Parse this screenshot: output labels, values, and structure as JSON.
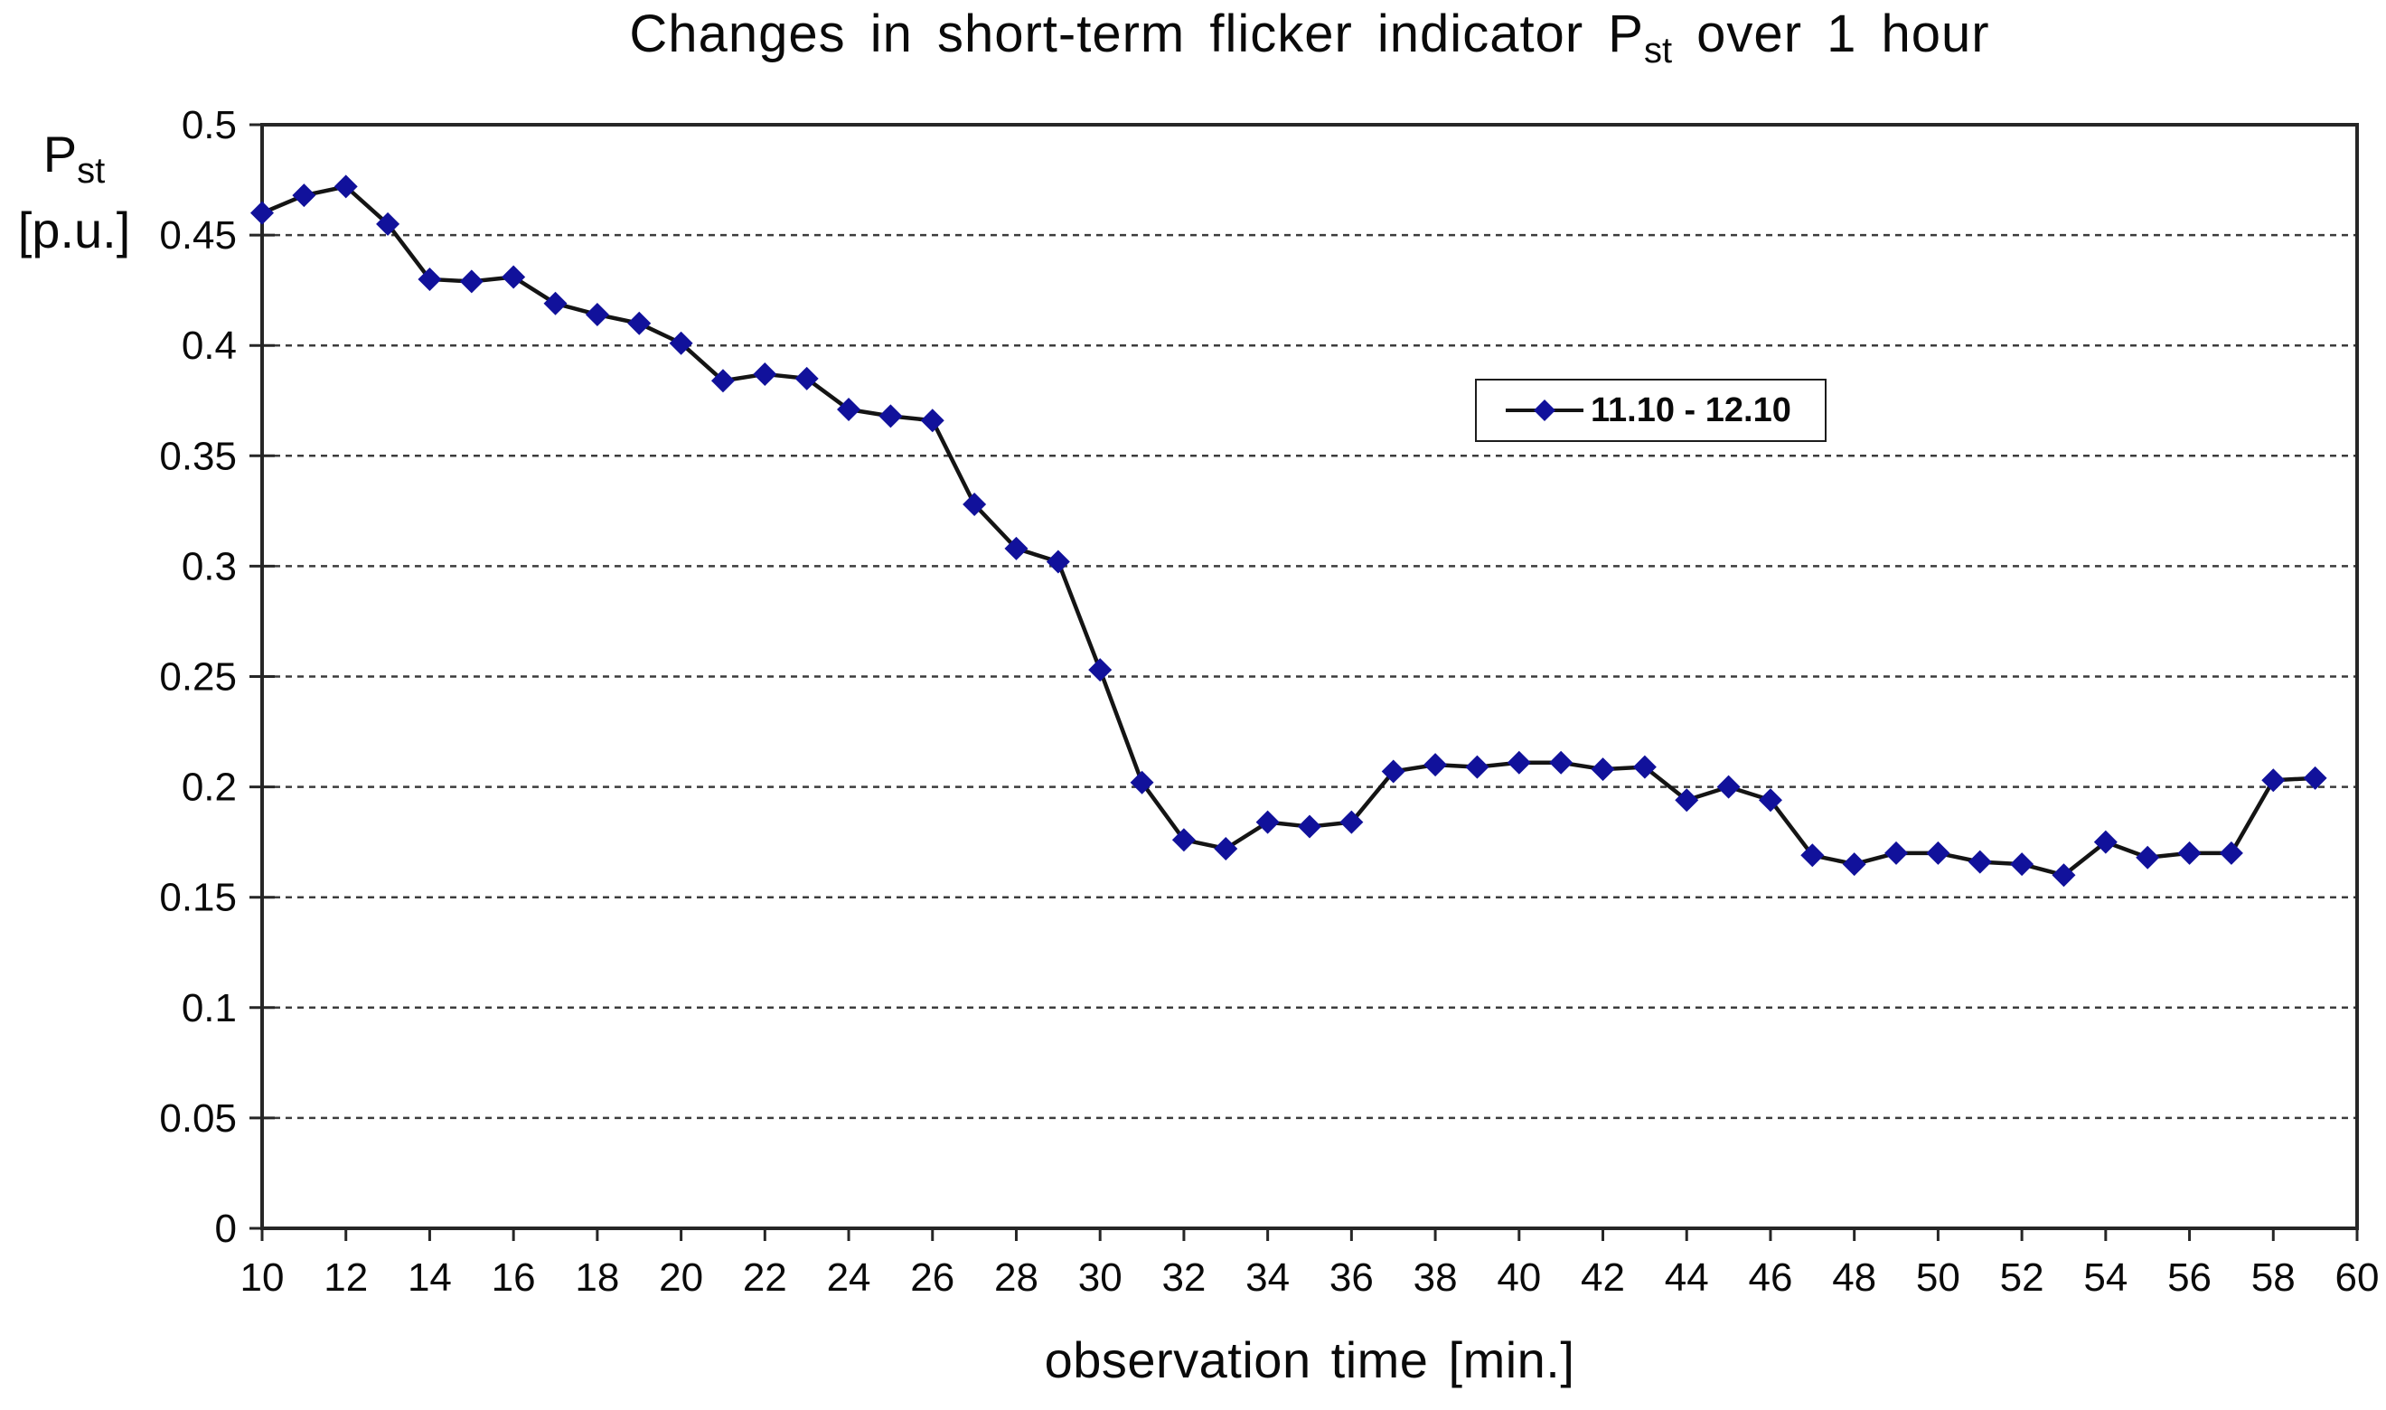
{
  "chart_data": {
    "type": "line",
    "title": {
      "prefix": "Changes in short-term flicker indicator P",
      "subscript": "st",
      "suffix": " over 1 hour"
    },
    "x_axis": {
      "label": "observation time [min.]",
      "min": 10,
      "max": 60,
      "tick_values": [
        10,
        12,
        14,
        16,
        18,
        20,
        22,
        24,
        26,
        28,
        30,
        32,
        34,
        36,
        38,
        40,
        42,
        44,
        46,
        48,
        50,
        52,
        54,
        56,
        58,
        60
      ],
      "tick_labels": [
        "10",
        "12",
        "14",
        "16",
        "18",
        "20",
        "22",
        "24",
        "26",
        "28",
        "30",
        "32",
        "34",
        "36",
        "38",
        "40",
        "42",
        "44",
        "46",
        "48",
        "50",
        "52",
        "54",
        "56",
        "58",
        "60"
      ]
    },
    "y_axis": {
      "label_main": "P",
      "label_sub": "st",
      "label_unit": "[p.u.]",
      "min": 0,
      "max": 0.5,
      "tick_values": [
        0,
        0.05,
        0.1,
        0.15,
        0.2,
        0.25,
        0.3,
        0.35,
        0.4,
        0.45,
        0.5
      ],
      "tick_labels": [
        "0",
        "0.05",
        "0.1",
        "0.15",
        "0.2",
        "0.25",
        "0.3",
        "0.35",
        "0.4",
        "0.45",
        "0.5"
      ]
    },
    "grid": {
      "show": true,
      "style": "dashed"
    },
    "legend": {
      "label": "11.10 - 12.10",
      "marker": "diamond",
      "position": "inside-upper-right"
    },
    "series": [
      {
        "name": "11.10 - 12.10",
        "x": [
          10,
          11,
          12,
          13,
          14,
          15,
          16,
          17,
          18,
          19,
          20,
          21,
          22,
          23,
          24,
          25,
          26,
          27,
          28,
          29,
          30,
          31,
          32,
          33,
          34,
          35,
          36,
          37,
          38,
          39,
          40,
          41,
          42,
          43,
          44,
          45,
          46,
          47,
          48,
          49,
          50,
          51,
          52,
          53,
          54,
          55,
          56,
          57,
          58,
          59
        ],
        "values": [
          0.46,
          0.468,
          0.472,
          0.455,
          0.43,
          0.429,
          0.431,
          0.419,
          0.414,
          0.41,
          0.401,
          0.384,
          0.387,
          0.385,
          0.371,
          0.368,
          0.366,
          0.328,
          0.308,
          0.302,
          0.253,
          0.202,
          0.176,
          0.172,
          0.184,
          0.182,
          0.184,
          0.207,
          0.21,
          0.209,
          0.211,
          0.211,
          0.208,
          0.209,
          0.194,
          0.2,
          0.194,
          0.169,
          0.165,
          0.17,
          0.17,
          0.166,
          0.165,
          0.16,
          0.175,
          0.168,
          0.17,
          0.17,
          0.203,
          0.204
        ]
      }
    ],
    "colors": {
      "marker": "#11119b",
      "line": "#141414",
      "grid": "#3c3c3c",
      "axis": "#262626",
      "background": "#ffffff"
    }
  }
}
